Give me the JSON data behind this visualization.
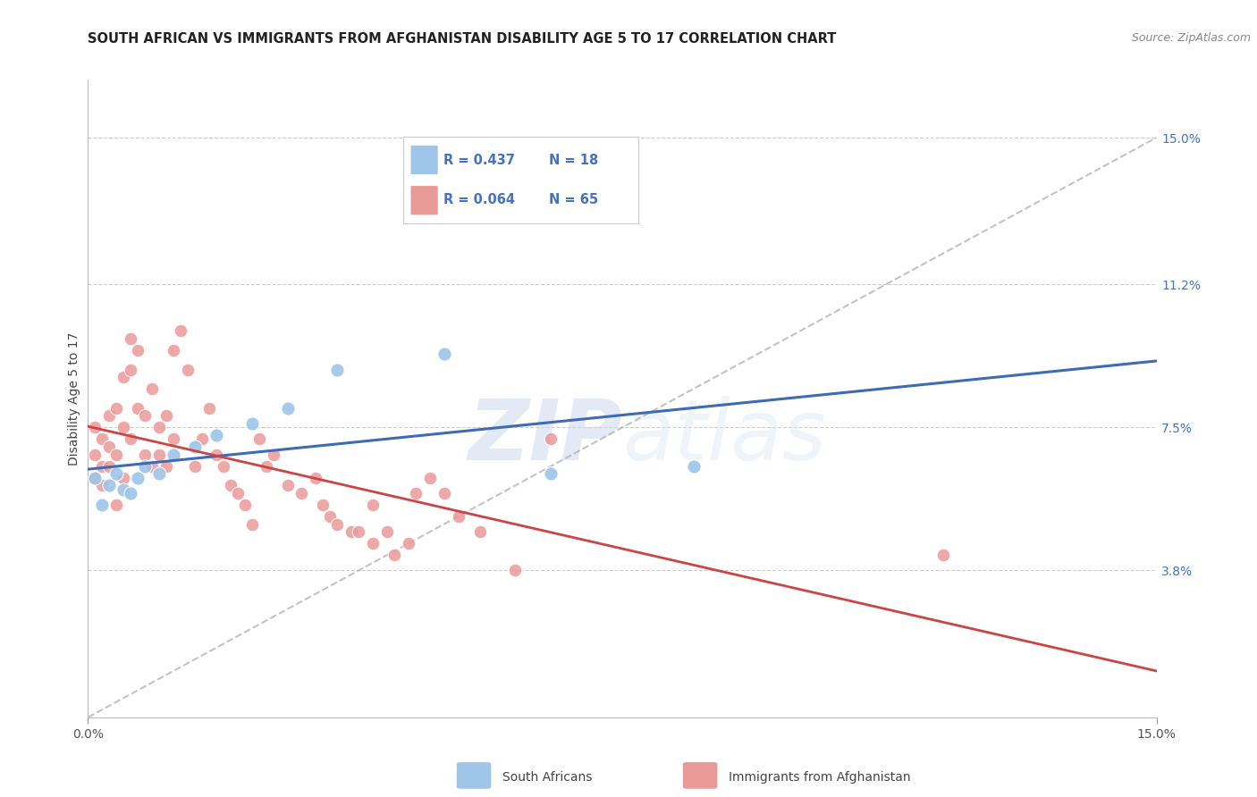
{
  "title": "SOUTH AFRICAN VS IMMIGRANTS FROM AFGHANISTAN DISABILITY AGE 5 TO 17 CORRELATION CHART",
  "source": "Source: ZipAtlas.com",
  "ylabel": "Disability Age 5 to 17",
  "ytick_labels": [
    "15.0%",
    "11.2%",
    "7.5%",
    "3.8%"
  ],
  "ytick_values": [
    0.15,
    0.112,
    0.075,
    0.038
  ],
  "xlim": [
    0.0,
    0.15
  ],
  "ylim": [
    0.0,
    0.165
  ],
  "legend_blue_r": "0.437",
  "legend_blue_n": "18",
  "legend_pink_r": "0.064",
  "legend_pink_n": "65",
  "legend_label_blue": "South Africans",
  "legend_label_pink": "Immigrants from Afghanistan",
  "blue_color": "#9fc5e8",
  "pink_color": "#ea9999",
  "blue_line_color": "#3d6bb5",
  "pink_line_color": "#cc4444",
  "dashed_line_color": "#aaaaaa",
  "watermark_zip": "ZIP",
  "watermark_atlas": "atlas",
  "background_color": "#ffffff",
  "grid_color": "#cccccc",
  "sa_x": [
    0.001,
    0.002,
    0.003,
    0.004,
    0.005,
    0.006,
    0.007,
    0.008,
    0.01,
    0.012,
    0.015,
    0.018,
    0.023,
    0.028,
    0.035,
    0.05,
    0.065,
    0.085
  ],
  "sa_y": [
    0.062,
    0.055,
    0.06,
    0.063,
    0.059,
    0.058,
    0.062,
    0.065,
    0.063,
    0.068,
    0.07,
    0.073,
    0.076,
    0.08,
    0.09,
    0.094,
    0.063,
    0.065
  ],
  "afg_x": [
    0.001,
    0.001,
    0.001,
    0.002,
    0.002,
    0.002,
    0.003,
    0.003,
    0.003,
    0.004,
    0.004,
    0.004,
    0.005,
    0.005,
    0.005,
    0.006,
    0.006,
    0.006,
    0.007,
    0.007,
    0.008,
    0.008,
    0.009,
    0.009,
    0.01,
    0.01,
    0.011,
    0.011,
    0.012,
    0.012,
    0.013,
    0.014,
    0.015,
    0.016,
    0.017,
    0.018,
    0.019,
    0.02,
    0.021,
    0.022,
    0.023,
    0.024,
    0.025,
    0.026,
    0.028,
    0.03,
    0.032,
    0.033,
    0.034,
    0.035,
    0.037,
    0.038,
    0.04,
    0.04,
    0.042,
    0.043,
    0.045,
    0.046,
    0.048,
    0.05,
    0.052,
    0.055,
    0.06,
    0.065,
    0.12
  ],
  "afg_y": [
    0.068,
    0.075,
    0.062,
    0.065,
    0.072,
    0.06,
    0.07,
    0.078,
    0.065,
    0.068,
    0.08,
    0.055,
    0.088,
    0.075,
    0.062,
    0.09,
    0.098,
    0.072,
    0.095,
    0.08,
    0.068,
    0.078,
    0.085,
    0.065,
    0.075,
    0.068,
    0.078,
    0.065,
    0.072,
    0.095,
    0.1,
    0.09,
    0.065,
    0.072,
    0.08,
    0.068,
    0.065,
    0.06,
    0.058,
    0.055,
    0.05,
    0.072,
    0.065,
    0.068,
    0.06,
    0.058,
    0.062,
    0.055,
    0.052,
    0.05,
    0.048,
    0.048,
    0.045,
    0.055,
    0.048,
    0.042,
    0.045,
    0.058,
    0.062,
    0.058,
    0.052,
    0.048,
    0.038,
    0.072,
    0.042
  ]
}
